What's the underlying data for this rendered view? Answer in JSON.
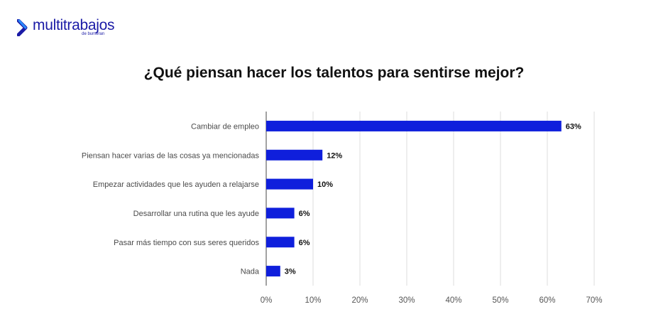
{
  "brand": {
    "name": "multitrabajos",
    "sub": "de bumeran",
    "color": "#1a1aa6"
  },
  "chart_data": {
    "type": "bar",
    "orientation": "horizontal",
    "title": "¿Qué piensan hacer los talentos para sentirse mejor?",
    "categories": [
      "Cambiar de empleo",
      "Piensan hacer varias de las cosas ya mencionadas",
      "Empezar actividades que les ayuden a relajarse",
      "Desarrollar una rutina que les ayude",
      "Pasar más tiempo con sus seres queridos",
      "Nada"
    ],
    "values": [
      63,
      12,
      10,
      6,
      6,
      3
    ],
    "value_labels": [
      "63%",
      "12%",
      "10%",
      "6%",
      "6%",
      "3%"
    ],
    "xlim": [
      0,
      70
    ],
    "ticks": [
      0,
      10,
      20,
      30,
      40,
      50,
      60,
      70
    ],
    "tick_labels": [
      "0%",
      "10%",
      "20%",
      "30%",
      "40%",
      "50%",
      "60%",
      "70%"
    ],
    "bar_color": "#0f1fdc",
    "grid": true,
    "legend": "none"
  }
}
